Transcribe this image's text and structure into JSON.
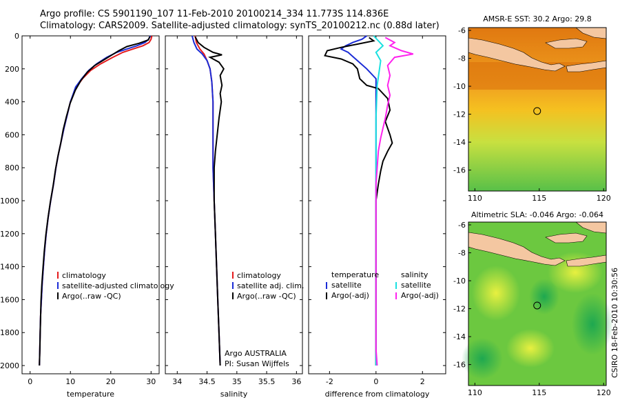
{
  "header": {
    "line1": "Argo profile: CS 5901190_107 11-Feb-2010 20100214_334 11.773S 114.836E",
    "line2": "Climatology: CARS2009. Satellite-adjusted climatology: synTS_20100212.nc (0.88d later)"
  },
  "side_label": "CSIRO 18-Feb-2010 10:30:56",
  "colors": {
    "clim": "#e41a1c",
    "sat": "#1a2bd6",
    "argo": "#000000",
    "sal_sat": "#19e0e0",
    "sal_argo": "#ff22ee",
    "land": "#f4c7a1"
  },
  "chart_data": [
    {
      "type": "line",
      "name": "temperature-profile",
      "xlabel": "temperature",
      "ylabel": "",
      "xlim": [
        -2,
        32
      ],
      "ylim": [
        2050,
        0
      ],
      "xticks": [
        "0",
        "10",
        "20",
        "30"
      ],
      "xtick_values": [
        0,
        10,
        20,
        30
      ],
      "yticks": [
        "0",
        "200",
        "400",
        "600",
        "800",
        "1000",
        "1200",
        "1400",
        "1600",
        "1800",
        "2000"
      ],
      "ytick_values": [
        0,
        200,
        400,
        600,
        800,
        1000,
        1200,
        1400,
        1600,
        1800,
        2000
      ],
      "legend": [
        "climatology",
        "satellite-adjusted climatology",
        "Argo(..raw -QC)"
      ],
      "series": [
        {
          "name": "climatology",
          "color_key": "clim",
          "points": [
            [
              30.2,
              0
            ],
            [
              30.0,
              20
            ],
            [
              29.5,
              40
            ],
            [
              28,
              60
            ],
            [
              25.5,
              80
            ],
            [
              23,
              100
            ],
            [
              20.5,
              130
            ],
            [
              17.5,
              170
            ],
            [
              15,
              210
            ],
            [
              13,
              260
            ],
            [
              11.5,
              310
            ],
            [
              10,
              400
            ],
            [
              9.2,
              480
            ],
            [
              8.4,
              560
            ],
            [
              7.7,
              640
            ],
            [
              7.0,
              720
            ],
            [
              6.4,
              800
            ],
            [
              5.8,
              900
            ],
            [
              5.1,
              1000
            ],
            [
              4.5,
              1100
            ],
            [
              4.0,
              1200
            ],
            [
              3.6,
              1300
            ],
            [
              3.3,
              1400
            ],
            [
              3.0,
              1500
            ],
            [
              2.8,
              1600
            ],
            [
              2.6,
              1700
            ],
            [
              2.5,
              1800
            ],
            [
              2.4,
              1900
            ],
            [
              2.3,
              2000
            ]
          ]
        },
        {
          "name": "satellite",
          "color_key": "sat",
          "points": [
            [
              29.8,
              0
            ],
            [
              29.4,
              20
            ],
            [
              28.5,
              40
            ],
            [
              26.5,
              60
            ],
            [
              24,
              80
            ],
            [
              21.5,
              100
            ],
            [
              19,
              130
            ],
            [
              16.5,
              170
            ],
            [
              14.5,
              210
            ],
            [
              12.8,
              260
            ],
            [
              11.3,
              310
            ],
            [
              10,
              400
            ],
            [
              9.2,
              480
            ],
            [
              8.4,
              560
            ],
            [
              7.7,
              640
            ],
            [
              7.0,
              720
            ],
            [
              6.4,
              800
            ],
            [
              5.8,
              900
            ],
            [
              5.1,
              1000
            ],
            [
              4.5,
              1100
            ],
            [
              4.0,
              1200
            ],
            [
              3.6,
              1300
            ],
            [
              3.3,
              1400
            ],
            [
              3.0,
              1500
            ],
            [
              2.8,
              1600
            ],
            [
              2.6,
              1700
            ],
            [
              2.5,
              1800
            ],
            [
              2.4,
              1900
            ],
            [
              2.3,
              2000
            ]
          ]
        },
        {
          "name": "argo",
          "color_key": "argo",
          "points": [
            [
              29.7,
              5
            ],
            [
              29.3,
              25
            ],
            [
              27,
              45
            ],
            [
              24,
              65
            ],
            [
              22,
              90
            ],
            [
              20,
              120
            ],
            [
              18,
              150
            ],
            [
              16,
              180
            ],
            [
              14.2,
              220
            ],
            [
              12.6,
              270
            ],
            [
              11.2,
              330
            ],
            [
              9.9,
              410
            ],
            [
              9.0,
              490
            ],
            [
              8.2,
              570
            ],
            [
              7.6,
              650
            ],
            [
              6.9,
              730
            ],
            [
              6.3,
              810
            ],
            [
              5.7,
              910
            ],
            [
              5.0,
              1010
            ],
            [
              4.4,
              1110
            ],
            [
              3.9,
              1210
            ],
            [
              3.5,
              1310
            ],
            [
              3.2,
              1410
            ],
            [
              2.9,
              1510
            ],
            [
              2.7,
              1610
            ],
            [
              2.6,
              1710
            ],
            [
              2.5,
              1810
            ],
            [
              2.4,
              1910
            ],
            [
              2.3,
              2000
            ]
          ]
        }
      ]
    },
    {
      "type": "line",
      "name": "salinity-profile",
      "xlabel": "salinity",
      "xlim": [
        33.8,
        36.1
      ],
      "ylim": [
        2050,
        0
      ],
      "xticks": [
        "34",
        "34.5",
        "35",
        "35.5",
        "36"
      ],
      "xtick_values": [
        34,
        34.5,
        35,
        35.5,
        36
      ],
      "legend": [
        "climatology",
        "satellite adj. clim.",
        "Argo(..raw -QC)"
      ],
      "annotation": [
        "Argo AUSTRALIA",
        "PI: Susan Wijffels"
      ],
      "series": [
        {
          "name": "climatology",
          "color_key": "clim",
          "points": [
            [
              34.3,
              0
            ],
            [
              34.32,
              40
            ],
            [
              34.38,
              80
            ],
            [
              34.45,
              110
            ],
            [
              34.5,
              150
            ],
            [
              34.55,
              200
            ],
            [
              34.58,
              280
            ],
            [
              34.6,
              400
            ],
            [
              34.6,
              600
            ],
            [
              34.6,
              800
            ],
            [
              34.62,
              1000
            ],
            [
              34.64,
              1200
            ],
            [
              34.66,
              1400
            ],
            [
              34.68,
              1600
            ],
            [
              34.7,
              1800
            ],
            [
              34.72,
              2000
            ]
          ]
        },
        {
          "name": "satellite",
          "color_key": "sat",
          "points": [
            [
              34.25,
              0
            ],
            [
              34.28,
              40
            ],
            [
              34.33,
              80
            ],
            [
              34.42,
              110
            ],
            [
              34.5,
              150
            ],
            [
              34.55,
              200
            ],
            [
              34.58,
              280
            ],
            [
              34.6,
              400
            ],
            [
              34.6,
              600
            ],
            [
              34.6,
              800
            ],
            [
              34.62,
              1000
            ],
            [
              34.64,
              1200
            ],
            [
              34.66,
              1400
            ],
            [
              34.68,
              1600
            ],
            [
              34.7,
              1800
            ],
            [
              34.72,
              2000
            ]
          ]
        },
        {
          "name": "argo",
          "color_key": "argo",
          "points": [
            [
              34.3,
              5
            ],
            [
              34.35,
              40
            ],
            [
              34.45,
              70
            ],
            [
              34.6,
              100
            ],
            [
              34.75,
              115
            ],
            [
              34.55,
              130
            ],
            [
              34.7,
              160
            ],
            [
              34.78,
              200
            ],
            [
              34.72,
              240
            ],
            [
              34.75,
              300
            ],
            [
              34.72,
              350
            ],
            [
              34.74,
              400
            ],
            [
              34.7,
              500
            ],
            [
              34.67,
              600
            ],
            [
              34.64,
              700
            ],
            [
              34.62,
              800
            ],
            [
              34.62,
              1000
            ],
            [
              34.64,
              1200
            ],
            [
              34.66,
              1400
            ],
            [
              34.68,
              1600
            ],
            [
              34.7,
              1800
            ],
            [
              34.72,
              2000
            ]
          ]
        }
      ]
    },
    {
      "type": "line",
      "name": "difference-profile",
      "xlabel": "difference from climatology",
      "xlim": [
        -2.9,
        3.0
      ],
      "ylim": [
        2050,
        0
      ],
      "xticks": [
        "-2",
        "0",
        "2"
      ],
      "xtick_values": [
        -2,
        0,
        2
      ],
      "legend_left": [
        "temperature",
        "satellite",
        "Argo(-adj)"
      ],
      "legend_right": [
        "salinity",
        "satellite",
        "Argo(-adj)"
      ],
      "series": [
        {
          "name": "temp-satellite",
          "color_key": "sat",
          "points": [
            [
              -0.4,
              0
            ],
            [
              -0.6,
              20
            ],
            [
              -1.0,
              40
            ],
            [
              -1.3,
              60
            ],
            [
              -1.5,
              80
            ],
            [
              -1.2,
              100
            ],
            [
              -0.8,
              150
            ],
            [
              -0.4,
              200
            ],
            [
              0,
              260
            ],
            [
              0,
              2000
            ]
          ]
        },
        {
          "name": "temp-argo",
          "color_key": "argo",
          "points": [
            [
              -0.3,
              10
            ],
            [
              -0.1,
              30
            ],
            [
              -0.8,
              50
            ],
            [
              -1.5,
              70
            ],
            [
              -2.1,
              90
            ],
            [
              -2.2,
              120
            ],
            [
              -1.5,
              140
            ],
            [
              -1.0,
              170
            ],
            [
              -0.8,
              200
            ],
            [
              -0.7,
              260
            ],
            [
              -0.4,
              300
            ],
            [
              0.1,
              320
            ],
            [
              0.5,
              380
            ],
            [
              0.6,
              450
            ],
            [
              0.4,
              520
            ],
            [
              0.5,
              560
            ],
            [
              0.6,
              600
            ],
            [
              0.7,
              650
            ],
            [
              0.5,
              700
            ],
            [
              0.3,
              760
            ],
            [
              0.2,
              820
            ],
            [
              0.1,
              900
            ],
            [
              0,
              1000
            ],
            [
              0,
              2000
            ]
          ]
        },
        {
          "name": "sal-satellite",
          "color_key": "sal_sat",
          "points": [
            [
              -0.1,
              0
            ],
            [
              0.1,
              30
            ],
            [
              0.3,
              60
            ],
            [
              0.0,
              100
            ],
            [
              0.2,
              150
            ],
            [
              0.05,
              300
            ],
            [
              0,
              500
            ],
            [
              0,
              2000
            ]
          ]
        },
        {
          "name": "sal-argo",
          "color_key": "sal_argo",
          "points": [
            [
              0.4,
              10
            ],
            [
              0.8,
              40
            ],
            [
              0.6,
              60
            ],
            [
              1.1,
              90
            ],
            [
              1.6,
              110
            ],
            [
              0.8,
              130
            ],
            [
              0.5,
              180
            ],
            [
              0.6,
              240
            ],
            [
              0.5,
              300
            ],
            [
              0.6,
              360
            ],
            [
              0.5,
              420
            ],
            [
              0.4,
              500
            ],
            [
              0.3,
              560
            ],
            [
              0.2,
              620
            ],
            [
              0.1,
              700
            ],
            [
              0.05,
              800
            ],
            [
              0,
              900
            ],
            [
              0,
              1900
            ],
            [
              0.05,
              2000
            ]
          ]
        }
      ]
    },
    {
      "type": "heatmap",
      "name": "sst-map",
      "title": "AMSR-E SST: 30.2 Argo: 29.8",
      "xlim": [
        109.5,
        120.2
      ],
      "ylim": [
        -17.5,
        -5.8
      ],
      "xticks": [
        "110",
        "115",
        "120"
      ],
      "xtick_values": [
        110,
        115,
        120
      ],
      "yticks": [
        "-6",
        "-8",
        "-10",
        "-12",
        "-14",
        "-16"
      ],
      "ytick_values": [
        -6,
        -8,
        -10,
        -12,
        -14,
        -16
      ],
      "marker": {
        "lon": 114.836,
        "lat": -11.773
      }
    },
    {
      "type": "heatmap",
      "name": "sla-map",
      "title": "Altimetric SLA: -0.046 Argo: -0.064",
      "xlim": [
        109.5,
        120.2
      ],
      "ylim": [
        -17.5,
        -5.8
      ],
      "xticks": [
        "110",
        "115",
        "120"
      ],
      "xtick_values": [
        110,
        115,
        120
      ],
      "yticks": [
        "-6",
        "-8",
        "-10",
        "-12",
        "-14",
        "-16"
      ],
      "ytick_values": [
        -6,
        -8,
        -10,
        -12,
        -14,
        -16
      ],
      "marker": {
        "lon": 114.836,
        "lat": -11.773
      }
    }
  ]
}
